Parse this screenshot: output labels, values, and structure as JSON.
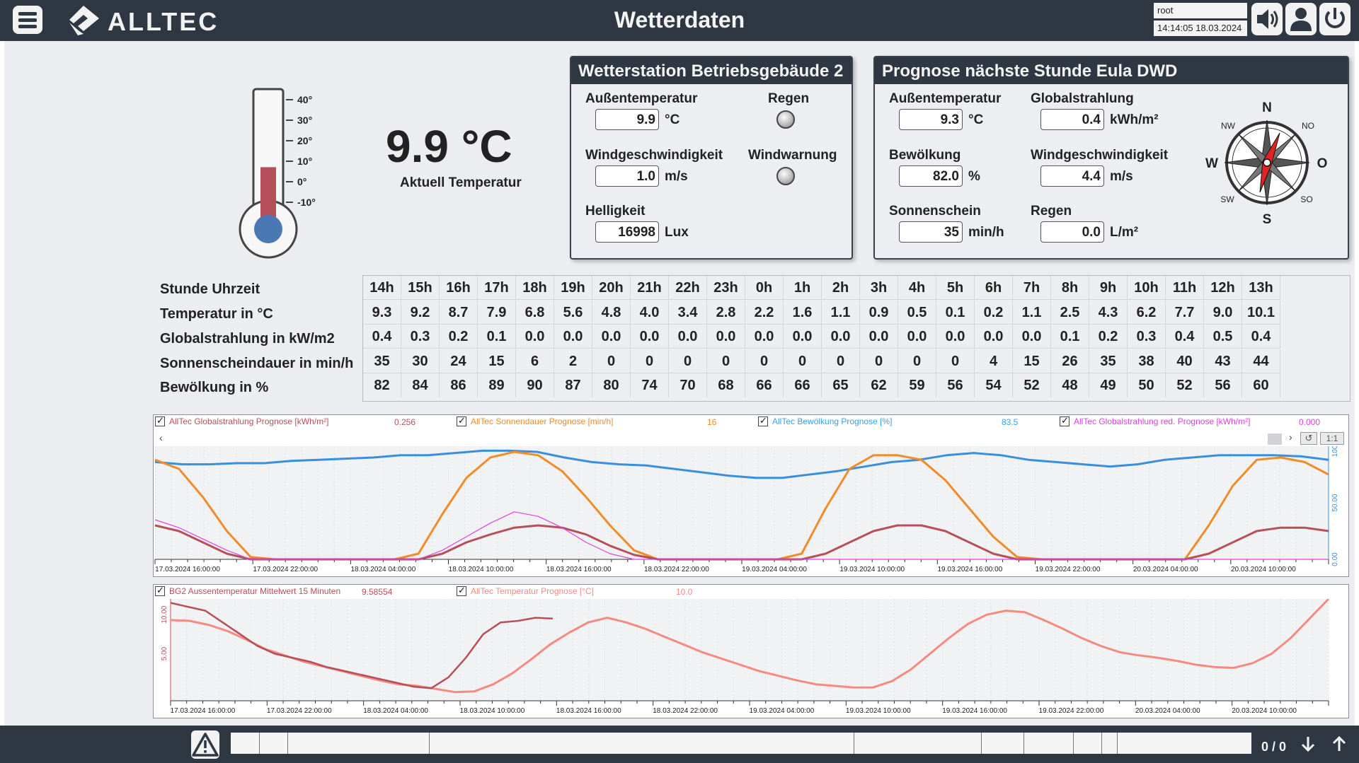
{
  "header": {
    "title": "Wetterdaten",
    "logo_text": "ALLTEC",
    "user": "root",
    "datetime": "14:14:05 18.03.2024"
  },
  "current": {
    "temperature": "9.9 °C",
    "label": "Aktuell Temperatur",
    "scale": [
      "40°",
      "30°",
      "20°",
      "10°",
      "0°",
      "-10°"
    ],
    "level_fraction": 0.4
  },
  "station": {
    "title": "Wetterstation Betriebsgebäude 2",
    "fields": [
      {
        "label": "Außentemperatur",
        "value": "9.9",
        "unit": "°C"
      },
      {
        "label": "Windgeschwindigkeit",
        "value": "1.0",
        "unit": "m/s"
      },
      {
        "label": "Helligkeit",
        "value": "16998",
        "unit": "Lux"
      }
    ],
    "lamps": [
      {
        "label": "Regen"
      },
      {
        "label": "Windwarnung"
      }
    ]
  },
  "forecast_panel": {
    "title": "Prognose nächste Stunde Eula DWD",
    "fields": [
      {
        "label": "Außentemperatur",
        "value": "9.3",
        "unit": "°C"
      },
      {
        "label": "Globalstrahlung",
        "value": "0.4",
        "unit": "kWh/m²"
      },
      {
        "label": "Bewölkung",
        "value": "82.0",
        "unit": "%"
      },
      {
        "label": "Windgeschwindigkeit",
        "value": "4.4",
        "unit": "m/s"
      },
      {
        "label": "Sonnenschein",
        "value": "35",
        "unit": "min/h"
      },
      {
        "label": "Regen",
        "value": "0.0",
        "unit": "L/m²"
      }
    ],
    "compass": {
      "N": "N",
      "S": "S",
      "W": "W",
      "O": "O",
      "NW": "NW",
      "NO": "NO",
      "SW": "SW",
      "SO": "SO"
    }
  },
  "forecast_table": {
    "row_labels": [
      "Stunde Uhrzeit",
      "Temperatur in °C",
      "Globalstrahlung in kW/m2",
      "Sonnenscheindauer in min/h",
      "Bewölkung in %"
    ],
    "hours": [
      "14h",
      "15h",
      "16h",
      "17h",
      "18h",
      "19h",
      "20h",
      "21h",
      "22h",
      "23h",
      "0h",
      "1h",
      "2h",
      "3h",
      "4h",
      "5h",
      "6h",
      "7h",
      "8h",
      "9h",
      "10h",
      "11h",
      "12h",
      "13h"
    ],
    "temperature": [
      "9.3",
      "9.2",
      "8.7",
      "7.9",
      "6.8",
      "5.6",
      "4.8",
      "4.0",
      "3.4",
      "2.8",
      "2.2",
      "1.6",
      "1.1",
      "0.9",
      "0.5",
      "0.1",
      "0.2",
      "1.1",
      "2.5",
      "4.3",
      "6.2",
      "7.7",
      "9.0",
      "10.1"
    ],
    "global": [
      "0.4",
      "0.3",
      "0.2",
      "0.1",
      "0.0",
      "0.0",
      "0.0",
      "0.0",
      "0.0",
      "0.0",
      "0.0",
      "0.0",
      "0.0",
      "0.0",
      "0.0",
      "0.0",
      "0.0",
      "0.0",
      "0.1",
      "0.2",
      "0.3",
      "0.4",
      "0.5",
      "0.4"
    ],
    "sunshine": [
      "35",
      "30",
      "24",
      "15",
      "6",
      "2",
      "0",
      "0",
      "0",
      "0",
      "0",
      "0",
      "0",
      "0",
      "0",
      "0",
      "4",
      "15",
      "26",
      "35",
      "38",
      "40",
      "43",
      "44"
    ],
    "clouds": [
      "82",
      "84",
      "86",
      "89",
      "90",
      "87",
      "80",
      "74",
      "70",
      "68",
      "66",
      "66",
      "65",
      "62",
      "59",
      "56",
      "54",
      "52",
      "48",
      "49",
      "50",
      "52",
      "56",
      "60"
    ]
  },
  "chart1": {
    "legend": [
      {
        "name": "AllTec Globalstrahlung Prognose [kWh/m²]",
        "value": "0.256",
        "color": "#b5505a"
      },
      {
        "name": "AllTec Sonnendauer Prognose [min/h]",
        "value": "16",
        "color": "#f08c2a"
      },
      {
        "name": "AllTec Bewölkung Prognose [%]",
        "value": "83.5",
        "color": "#3aa0e6"
      },
      {
        "name": "AllTec Globalstrahlung red. Prognose [kWh/m²]",
        "value": "0.000",
        "color": "#e040e0"
      }
    ],
    "x_ticks": [
      "17.03.2024 16:00:00",
      "17.03.2024 22:00:00",
      "18.03.2024 04:00:00",
      "18.03.2024 10:00:00",
      "18.03.2024 16:00:00",
      "18.03.2024 22:00:00",
      "19.03.2024 04:00:00",
      "19.03.2024 10:00:00",
      "19.03.2024 16:00:00",
      "19.03.2024 22:00:00",
      "20.03.2024 04:00:00",
      "20.03.2024 10:00:00"
    ],
    "y_ticks_right": [
      "100.00",
      "50.00",
      "0.00"
    ],
    "zoom_label": "1:1"
  },
  "chart2": {
    "legend": [
      {
        "name": "BG2 Aussentemperatur Mittelwert 15 Minuten",
        "value": "9.58554",
        "color": "#b5505a"
      },
      {
        "name": "AllTec Temperatur Prognose [°C]",
        "value": "10.0",
        "color": "#f58a80"
      }
    ],
    "x_ticks": [
      "17.03.2024 16:00:00",
      "17.03.2024 22:00:00",
      "18.03.2024 04:00:00",
      "18.03.2024 10:00:00",
      "18.03.2024 16:00:00",
      "18.03.2024 22:00:00",
      "19.03.2024 04:00:00",
      "19.03.2024 10:00:00",
      "19.03.2024 16:00:00",
      "19.03.2024 22:00:00",
      "20.03.2024 04:00:00",
      "20.03.2024 10:00:00"
    ],
    "y_ticks_left": [
      "10.00",
      "5.00"
    ]
  },
  "chart_data": [
    {
      "type": "line",
      "x_start": "17.03.2024 14:00",
      "x_end": "20.03.2024 14:00",
      "ylim": [
        0,
        100
      ],
      "series": [
        {
          "name": "AllTec Bewölkung Prognose [%]",
          "values": [
            86,
            84,
            84,
            85,
            85,
            87,
            88,
            89,
            90,
            92,
            92,
            94,
            96,
            96,
            95,
            90,
            86,
            84,
            83,
            80,
            77,
            74,
            72,
            72,
            75,
            78,
            82,
            86,
            88,
            92,
            94,
            92,
            88,
            86,
            84,
            82,
            84,
            88,
            90,
            92,
            92,
            92,
            91,
            88
          ]
        },
        {
          "name": "AllTec Sonnendauer Prognose [min/h]",
          "values": [
            88,
            80,
            55,
            25,
            2,
            0,
            0,
            0,
            0,
            0,
            0,
            5,
            40,
            72,
            90,
            95,
            92,
            78,
            55,
            30,
            8,
            0,
            0,
            0,
            0,
            0,
            0,
            5,
            45,
            80,
            92,
            92,
            88,
            70,
            45,
            20,
            2,
            0,
            0,
            0,
            0,
            0,
            0,
            0,
            30,
            65,
            88,
            90,
            86,
            75
          ]
        },
        {
          "name": "AllTec Globalstrahlung Prognose [kWh/m²]",
          "values": [
            30,
            25,
            15,
            5,
            0,
            0,
            0,
            0,
            0,
            0,
            0,
            0,
            5,
            15,
            22,
            28,
            30,
            28,
            22,
            12,
            4,
            0,
            0,
            0,
            0,
            0,
            0,
            0,
            5,
            15,
            25,
            30,
            30,
            25,
            15,
            5,
            0,
            0,
            0,
            0,
            0,
            0,
            0,
            0,
            5,
            15,
            25,
            28,
            28,
            25
          ]
        },
        {
          "name": "AllTec Globalstrahlung red. Prognose [kWh/m²]",
          "values": [
            35,
            28,
            18,
            8,
            0,
            0,
            0,
            0,
            0,
            0,
            0,
            0,
            8,
            20,
            32,
            42,
            38,
            28,
            15,
            5,
            0,
            0,
            0,
            0,
            0,
            0,
            0,
            0,
            0,
            0,
            0,
            0,
            0,
            0,
            0,
            0,
            0,
            0,
            0,
            0,
            0,
            0,
            0,
            0,
            0,
            0,
            0,
            0,
            0,
            0
          ]
        }
      ]
    },
    {
      "type": "line",
      "x_start": "17.03.2024 14:00",
      "x_end": "20.03.2024 14:00",
      "ylim": [
        -1,
        12
      ],
      "series": [
        {
          "name": "AllTec Temperatur Prognose [°C]",
          "values": [
            9.3,
            9.2,
            8.7,
            7.9,
            6.8,
            5.6,
            4.8,
            4.0,
            3.4,
            2.8,
            2.2,
            1.6,
            1.1,
            0.9,
            0.5,
            0.1,
            0.2,
            1.1,
            2.5,
            4.3,
            6.2,
            7.7,
            9.0,
            9.6,
            9.0,
            8.2,
            7.2,
            6.2,
            5.2,
            4.4,
            3.6,
            2.8,
            2.2,
            1.6,
            1.1,
            0.9,
            0.7,
            0.7,
            1.5,
            3.0,
            5.0,
            7.0,
            8.8,
            10.0,
            10.5,
            10.3,
            9.3,
            8.2,
            7.0,
            6.0,
            5.2,
            4.8,
            4.5,
            4.1,
            3.6,
            3.3,
            3.2,
            3.8,
            5.0,
            7.0,
            9.5,
            12.0
          ]
        },
        {
          "name": "BG2 Aussentemperatur Mittelwert 15 Minuten",
          "values": [
            11.5,
            11.0,
            10.5,
            9.0,
            7.5,
            6.0,
            5.0,
            4.5,
            4.0,
            3.3,
            2.8,
            2.3,
            1.8,
            1.3,
            0.8,
            0.6,
            2.0,
            4.5,
            7.5,
            9.0,
            9.2,
            9.6,
            9.5
          ]
        }
      ]
    }
  ],
  "bottom": {
    "counter": "0 / 0"
  }
}
